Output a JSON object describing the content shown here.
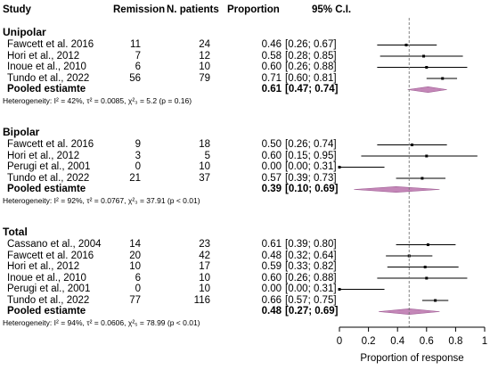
{
  "chart_data": {
    "type": "forest",
    "headers": {
      "study": "Study",
      "remission": "Remission",
      "patients": "N. patients",
      "proportion": "Proportion",
      "ci": "95% C.I."
    },
    "xlim": [
      0,
      1
    ],
    "xticks": [
      "0",
      "0.2",
      "0.4",
      "0.6",
      "0.8",
      "1"
    ],
    "xlabel": "Proportion of response",
    "reference_line": 0.48,
    "groups": [
      {
        "name": "Unipolar",
        "studies": [
          {
            "study": "Fawcett et al. 2016",
            "remission": "11",
            "n": "24",
            "prop_text": "0.46",
            "ci_text": "[0.26; 0.67]",
            "est": 0.46,
            "lo": 0.26,
            "hi": 0.67
          },
          {
            "study": "Hori et al., 2012",
            "remission": "7",
            "n": "12",
            "prop_text": "0.58",
            "ci_text": "[0.28; 0.85]",
            "est": 0.58,
            "lo": 0.28,
            "hi": 0.85
          },
          {
            "study": "Inoue et al., 2010",
            "remission": "6",
            "n": "10",
            "prop_text": "0.60",
            "ci_text": "[0.26; 0.88]",
            "est": 0.6,
            "lo": 0.26,
            "hi": 0.88
          },
          {
            "study": "Tundo et al., 2022",
            "remission": "56",
            "n": "79",
            "prop_text": "0.71",
            "ci_text": "[0.60; 0.81]",
            "est": 0.71,
            "lo": 0.6,
            "hi": 0.81
          }
        ],
        "pooled": {
          "label": "Pooled estiamte",
          "prop_text": "0.61",
          "ci_text": "[0.47; 0.74]",
          "est": 0.61,
          "lo": 0.47,
          "hi": 0.74
        },
        "heterogeneity": "Heterogeneity: I² = 42%, τ² = 0.0085, χ²₃ = 5.2 (p = 0.16)"
      },
      {
        "name": "Bipolar",
        "studies": [
          {
            "study": "Fawcett et al. 2016",
            "remission": "9",
            "n": "18",
            "prop_text": "0.50",
            "ci_text": "[0.26; 0.74]",
            "est": 0.5,
            "lo": 0.26,
            "hi": 0.74
          },
          {
            "study": "Hori et al., 2012",
            "remission": "3",
            "n": "5",
            "prop_text": "0.60",
            "ci_text": "[0.15; 0.95]",
            "est": 0.6,
            "lo": 0.15,
            "hi": 0.95
          },
          {
            "study": "Perugi et al., 2001",
            "remission": "0",
            "n": "10",
            "prop_text": "0.00",
            "ci_text": "[0.00; 0.31]",
            "est": 0.0,
            "lo": 0.0,
            "hi": 0.31
          },
          {
            "study": "Tundo et al., 2022",
            "remission": "21",
            "n": "37",
            "prop_text": "0.57",
            "ci_text": "[0.39; 0.73]",
            "est": 0.57,
            "lo": 0.39,
            "hi": 0.73
          }
        ],
        "pooled": {
          "label": "Pooled estiamte",
          "prop_text": "0.39",
          "ci_text": "[0.10; 0.69]",
          "est": 0.39,
          "lo": 0.1,
          "hi": 0.69
        },
        "heterogeneity": "Heterogeneity: I² = 92%, τ² = 0.0767, χ²₃ = 37.91 (p < 0.01)"
      },
      {
        "name": "Total",
        "studies": [
          {
            "study": "Cassano et al., 2004",
            "remission": "14",
            "n": "23",
            "prop_text": "0.61",
            "ci_text": "[0.39; 0.80]",
            "est": 0.61,
            "lo": 0.39,
            "hi": 0.8
          },
          {
            "study": "Fawcett et al. 2016",
            "remission": "20",
            "n": "42",
            "prop_text": "0.48",
            "ci_text": "[0.32; 0.64]",
            "est": 0.48,
            "lo": 0.32,
            "hi": 0.64
          },
          {
            "study": "Hori et al., 2012",
            "remission": "10",
            "n": "17",
            "prop_text": "0.59",
            "ci_text": "[0.33; 0.82]",
            "est": 0.59,
            "lo": 0.33,
            "hi": 0.82
          },
          {
            "study": "Inoue et al., 2010",
            "remission": "6",
            "n": "10",
            "prop_text": "0.60",
            "ci_text": "[0.26; 0.88]",
            "est": 0.6,
            "lo": 0.26,
            "hi": 0.88
          },
          {
            "study": "Perugi et al., 2001",
            "remission": "0",
            "n": "10",
            "prop_text": "0.00",
            "ci_text": "[0.00; 0.31]",
            "est": 0.0,
            "lo": 0.0,
            "hi": 0.31
          },
          {
            "study": "Tundo et al., 2022",
            "remission": "77",
            "n": "116",
            "prop_text": "0.66",
            "ci_text": "[0.57; 0.75]",
            "est": 0.66,
            "lo": 0.57,
            "hi": 0.75
          }
        ],
        "pooled": {
          "label": "Pooled estiamte",
          "prop_text": "0.48",
          "ci_text": "[0.27; 0.69]",
          "est": 0.48,
          "lo": 0.27,
          "hi": 0.69
        },
        "heterogeneity": "Heterogeneity: I² = 94%, τ² = 0.0606, χ²₅ = 78.99 (p < 0.01)"
      }
    ],
    "colors": {
      "diamond": "#c487b8",
      "diamond_stroke": "#9e5c93",
      "line": "#000000",
      "refline": "#777777"
    }
  }
}
